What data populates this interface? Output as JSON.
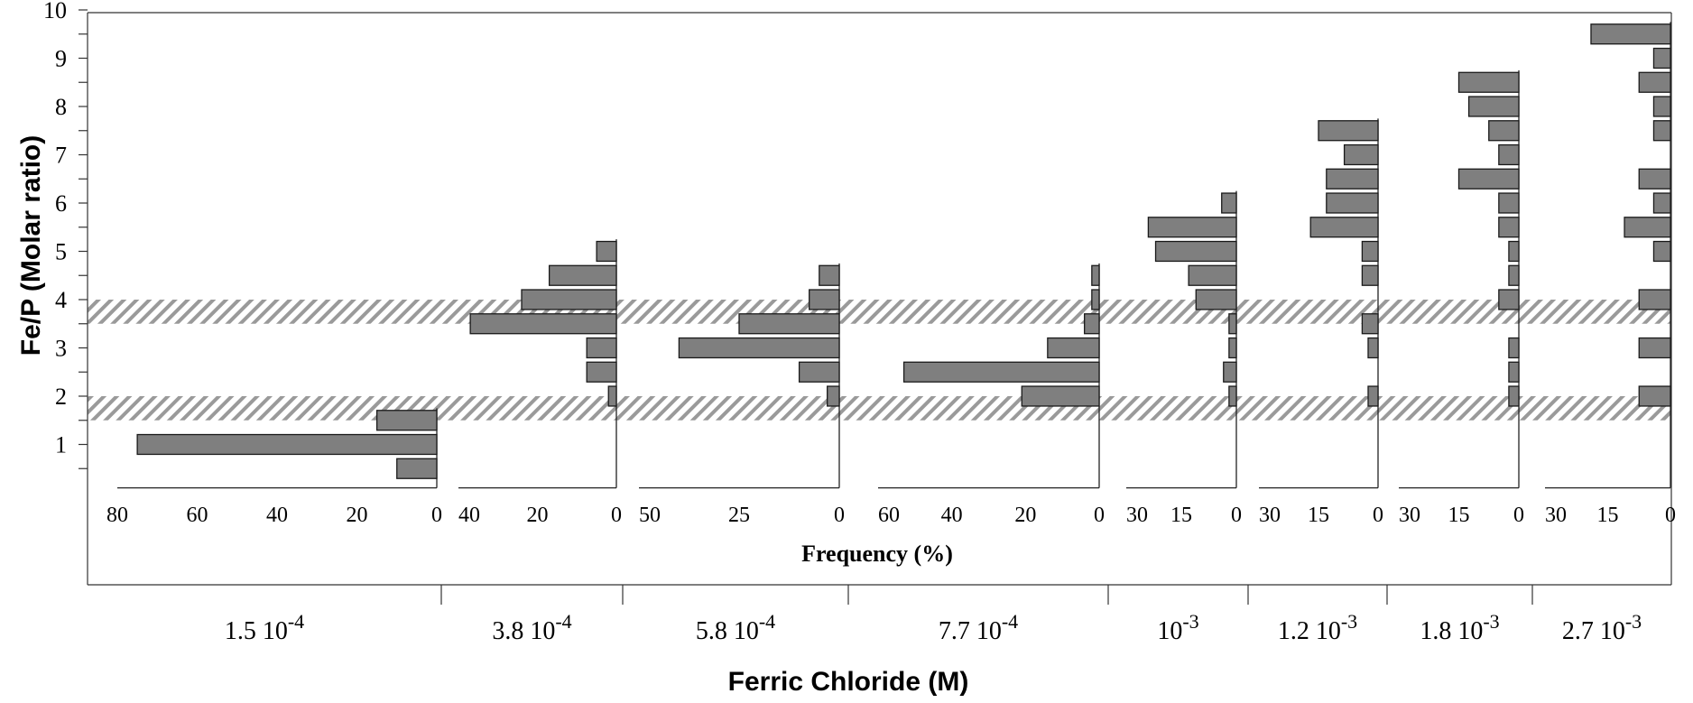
{
  "chart_data": {
    "type": "bar",
    "orientation": "horizontal",
    "ylabel": "Fe/P (Molar ratio)",
    "xlabel": "Ferric Chloride (M)",
    "frequency_label": "Frequency (%)",
    "ylim": [
      0,
      10
    ],
    "yticks": [
      "1",
      "2",
      "3",
      "4",
      "5",
      "6",
      "7",
      "8",
      "9",
      "10"
    ],
    "bin_width": 0.5,
    "shaded_bands": [
      [
        1.5,
        2.0
      ],
      [
        3.5,
        4.0
      ]
    ],
    "panels": [
      {
        "concentration": "1.5 10",
        "exponent": "-4",
        "xlim": [
          0,
          80
        ],
        "xticks": [
          "80",
          "60",
          "40",
          "20",
          "0"
        ],
        "bars": [
          {
            "y": 0.5,
            "value": 10
          },
          {
            "y": 1.0,
            "value": 75
          },
          {
            "y": 1.5,
            "value": 15
          }
        ]
      },
      {
        "concentration": "3.8 10",
        "exponent": "-4",
        "xlim": [
          0,
          40
        ],
        "xticks": [
          "40",
          "20",
          "0"
        ],
        "bars": [
          {
            "y": 2.0,
            "value": 2
          },
          {
            "y": 2.5,
            "value": 7.5
          },
          {
            "y": 3.0,
            "value": 7.5
          },
          {
            "y": 3.5,
            "value": 37
          },
          {
            "y": 4.0,
            "value": 24
          },
          {
            "y": 4.5,
            "value": 17
          },
          {
            "y": 5.0,
            "value": 5
          }
        ]
      },
      {
        "concentration": "5.8 10",
        "exponent": "-4",
        "xlim": [
          0,
          50
        ],
        "xticks": [
          "50",
          "25",
          "0"
        ],
        "bars": [
          {
            "y": 2.0,
            "value": 3
          },
          {
            "y": 2.5,
            "value": 10
          },
          {
            "y": 3.0,
            "value": 40
          },
          {
            "y": 3.5,
            "value": 25
          },
          {
            "y": 4.0,
            "value": 7.5
          },
          {
            "y": 4.5,
            "value": 5
          }
        ]
      },
      {
        "concentration": "7.7 10",
        "exponent": "-4",
        "xlim": [
          0,
          60
        ],
        "xticks": [
          "60",
          "40",
          "20",
          "0"
        ],
        "bars": [
          {
            "y": 2.0,
            "value": 21
          },
          {
            "y": 2.5,
            "value": 53
          },
          {
            "y": 3.0,
            "value": 14
          },
          {
            "y": 3.5,
            "value": 4
          },
          {
            "y": 4.0,
            "value": 2
          },
          {
            "y": 4.5,
            "value": 2
          }
        ]
      },
      {
        "concentration": "10",
        "exponent": "-3",
        "xlim": [
          0,
          30
        ],
        "xticks": [
          "30",
          "15",
          "0"
        ],
        "bars": [
          {
            "y": 2.0,
            "value": 2
          },
          {
            "y": 2.5,
            "value": 3.5
          },
          {
            "y": 3.0,
            "value": 2
          },
          {
            "y": 3.5,
            "value": 2
          },
          {
            "y": 4.0,
            "value": 11
          },
          {
            "y": 4.5,
            "value": 13
          },
          {
            "y": 5.0,
            "value": 22
          },
          {
            "y": 5.5,
            "value": 24
          },
          {
            "y": 6.0,
            "value": 4
          }
        ]
      },
      {
        "concentration": "1.2 10",
        "exponent": "-3",
        "xlim": [
          0,
          30
        ],
        "xticks": [
          "30",
          "15",
          "0"
        ],
        "bars": [
          {
            "y": 2.0,
            "value": 2.5
          },
          {
            "y": 3.0,
            "value": 2.5
          },
          {
            "y": 3.5,
            "value": 4
          },
          {
            "y": 4.5,
            "value": 4
          },
          {
            "y": 5.0,
            "value": 4
          },
          {
            "y": 5.5,
            "value": 17
          },
          {
            "y": 6.0,
            "value": 13
          },
          {
            "y": 6.5,
            "value": 13
          },
          {
            "y": 7.0,
            "value": 8.5
          },
          {
            "y": 7.5,
            "value": 15
          }
        ]
      },
      {
        "concentration": "1.8 10",
        "exponent": "-3",
        "xlim": [
          0,
          30
        ],
        "xticks": [
          "30",
          "15",
          "0"
        ],
        "bars": [
          {
            "y": 2.0,
            "value": 2.5
          },
          {
            "y": 2.5,
            "value": 2.5
          },
          {
            "y": 3.0,
            "value": 2.5
          },
          {
            "y": 4.0,
            "value": 5
          },
          {
            "y": 4.5,
            "value": 2.5
          },
          {
            "y": 5.0,
            "value": 2.5
          },
          {
            "y": 5.5,
            "value": 5
          },
          {
            "y": 6.0,
            "value": 5
          },
          {
            "y": 6.5,
            "value": 15
          },
          {
            "y": 7.0,
            "value": 5
          },
          {
            "y": 7.5,
            "value": 7.5
          },
          {
            "y": 8.0,
            "value": 12.5
          },
          {
            "y": 8.5,
            "value": 15
          }
        ]
      },
      {
        "concentration": "2.7 10",
        "exponent": "-3",
        "xlim": [
          0,
          30
        ],
        "xticks": [
          "30",
          "15",
          "0"
        ],
        "bars": [
          {
            "y": 2.0,
            "value": 7.5
          },
          {
            "y": 3.0,
            "value": 7.5
          },
          {
            "y": 4.0,
            "value": 7.5
          },
          {
            "y": 5.0,
            "value": 4
          },
          {
            "y": 5.5,
            "value": 11
          },
          {
            "y": 6.0,
            "value": 4
          },
          {
            "y": 6.5,
            "value": 7.5
          },
          {
            "y": 7.5,
            "value": 4
          },
          {
            "y": 8.0,
            "value": 4
          },
          {
            "y": 8.5,
            "value": 7.5
          },
          {
            "y": 9.0,
            "value": 4
          },
          {
            "y": 9.5,
            "value": 19
          }
        ]
      }
    ]
  }
}
